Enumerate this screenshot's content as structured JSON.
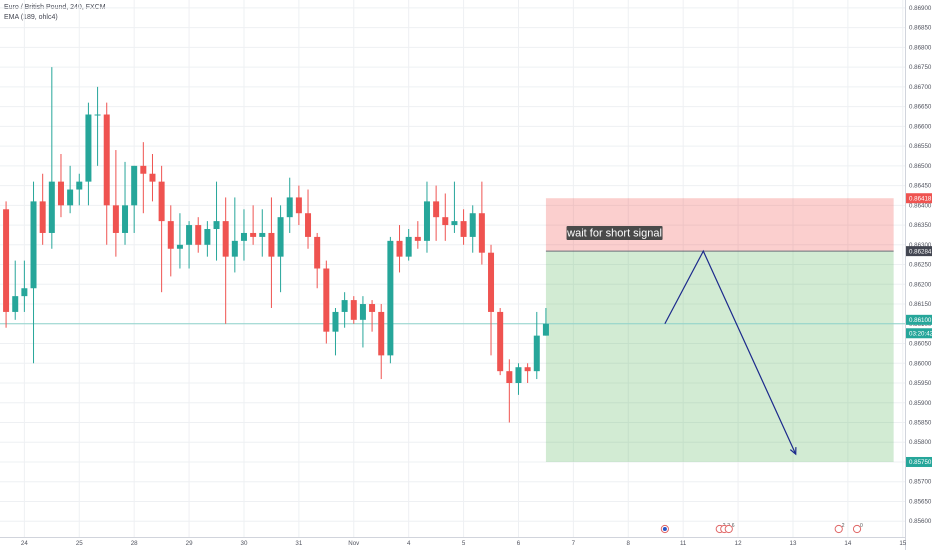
{
  "header": {
    "symbol": "Euro / British Pound, 240, FXCM",
    "indicator": "EMA (189, ohlc4)"
  },
  "chart_data": {
    "type": "candlestick",
    "ylim": [
      0.8556,
      0.8692
    ],
    "y_ticks": [
      0.856,
      0.8565,
      0.857,
      0.8575,
      0.858,
      0.8585,
      0.859,
      0.8595,
      0.86,
      0.8605,
      0.861,
      0.8615,
      0.862,
      0.8625,
      0.863,
      0.8635,
      0.864,
      0.8645,
      0.865,
      0.8655,
      0.866,
      0.8665,
      0.867,
      0.8675,
      0.868,
      0.8685,
      0.869
    ],
    "x_ticks": [
      {
        "label": "24",
        "slot": 2.5
      },
      {
        "label": "25",
        "slot": 8.5
      },
      {
        "label": "28",
        "slot": 14.5
      },
      {
        "label": "29",
        "slot": 20.5
      },
      {
        "label": "30",
        "slot": 26.5
      },
      {
        "label": "31",
        "slot": 32.5
      },
      {
        "label": "Nov",
        "slot": 38.5
      },
      {
        "label": "4",
        "slot": 44.5
      },
      {
        "label": "5",
        "slot": 50.5
      },
      {
        "label": "6",
        "slot": 56.5
      },
      {
        "label": "7",
        "slot": 62.5
      },
      {
        "label": "8",
        "slot": 68.5
      },
      {
        "label": "11",
        "slot": 74.5
      },
      {
        "label": "12",
        "slot": 80.5
      },
      {
        "label": "13",
        "slot": 86.5
      },
      {
        "label": "14",
        "slot": 92.5
      },
      {
        "label": "15",
        "slot": 98.5
      }
    ],
    "colors": {
      "up": "#26a69a",
      "down": "#ef5350",
      "grid": "#eef0f3",
      "ema": "#8fd3cc",
      "arrow": "#1c2a8c"
    },
    "candles": [
      {
        "o": 0.8639,
        "h": 0.8641,
        "l": 0.8609,
        "c": 0.8613
      },
      {
        "o": 0.8613,
        "h": 0.8626,
        "l": 0.8611,
        "c": 0.8617
      },
      {
        "o": 0.8617,
        "h": 0.8626,
        "l": 0.8613,
        "c": 0.8619
      },
      {
        "o": 0.8619,
        "h": 0.8646,
        "l": 0.86,
        "c": 0.8641
      },
      {
        "o": 0.8641,
        "h": 0.8648,
        "l": 0.863,
        "c": 0.8633
      },
      {
        "o": 0.8633,
        "h": 0.8675,
        "l": 0.8629,
        "c": 0.8646
      },
      {
        "o": 0.8646,
        "h": 0.8653,
        "l": 0.8637,
        "c": 0.864
      },
      {
        "o": 0.864,
        "h": 0.865,
        "l": 0.8638,
        "c": 0.8644
      },
      {
        "o": 0.8644,
        "h": 0.8648,
        "l": 0.864,
        "c": 0.8646
      },
      {
        "o": 0.8646,
        "h": 0.8666,
        "l": 0.864,
        "c": 0.8663
      },
      {
        "o": 0.8663,
        "h": 0.867,
        "l": 0.865,
        "c": 0.8663
      },
      {
        "o": 0.8663,
        "h": 0.8666,
        "l": 0.863,
        "c": 0.864
      },
      {
        "o": 0.864,
        "h": 0.8654,
        "l": 0.8627,
        "c": 0.8633
      },
      {
        "o": 0.8633,
        "h": 0.8651,
        "l": 0.863,
        "c": 0.864
      },
      {
        "o": 0.864,
        "h": 0.865,
        "l": 0.8633,
        "c": 0.865
      },
      {
        "o": 0.865,
        "h": 0.8656,
        "l": 0.8638,
        "c": 0.8648
      },
      {
        "o": 0.8648,
        "h": 0.8653,
        "l": 0.8641,
        "c": 0.8646
      },
      {
        "o": 0.8646,
        "h": 0.865,
        "l": 0.8618,
        "c": 0.8636
      },
      {
        "o": 0.8636,
        "h": 0.864,
        "l": 0.8622,
        "c": 0.8629
      },
      {
        "o": 0.8629,
        "h": 0.8638,
        "l": 0.8624,
        "c": 0.863
      },
      {
        "o": 0.863,
        "h": 0.8636,
        "l": 0.8624,
        "c": 0.8635
      },
      {
        "o": 0.8635,
        "h": 0.8637,
        "l": 0.8628,
        "c": 0.863
      },
      {
        "o": 0.863,
        "h": 0.8636,
        "l": 0.8627,
        "c": 0.8634
      },
      {
        "o": 0.8634,
        "h": 0.8646,
        "l": 0.8626,
        "c": 0.8636
      },
      {
        "o": 0.8636,
        "h": 0.8642,
        "l": 0.861,
        "c": 0.8627
      },
      {
        "o": 0.8627,
        "h": 0.8642,
        "l": 0.8623,
        "c": 0.8631
      },
      {
        "o": 0.8631,
        "h": 0.8639,
        "l": 0.8626,
        "c": 0.8633
      },
      {
        "o": 0.8633,
        "h": 0.864,
        "l": 0.863,
        "c": 0.8632
      },
      {
        "o": 0.8632,
        "h": 0.8639,
        "l": 0.8627,
        "c": 0.8633
      },
      {
        "o": 0.8633,
        "h": 0.8642,
        "l": 0.8614,
        "c": 0.8627
      },
      {
        "o": 0.8627,
        "h": 0.864,
        "l": 0.8618,
        "c": 0.8637
      },
      {
        "o": 0.8637,
        "h": 0.8647,
        "l": 0.8633,
        "c": 0.8642
      },
      {
        "o": 0.8642,
        "h": 0.8645,
        "l": 0.8635,
        "c": 0.8638
      },
      {
        "o": 0.8638,
        "h": 0.8644,
        "l": 0.8629,
        "c": 0.8632
      },
      {
        "o": 0.8632,
        "h": 0.8633,
        "l": 0.8619,
        "c": 0.8624
      },
      {
        "o": 0.8624,
        "h": 0.8626,
        "l": 0.8605,
        "c": 0.8608
      },
      {
        "o": 0.8608,
        "h": 0.8614,
        "l": 0.8602,
        "c": 0.8613
      },
      {
        "o": 0.8613,
        "h": 0.8618,
        "l": 0.8609,
        "c": 0.8616
      },
      {
        "o": 0.8616,
        "h": 0.8617,
        "l": 0.861,
        "c": 0.8611
      },
      {
        "o": 0.8611,
        "h": 0.8617,
        "l": 0.8604,
        "c": 0.8615
      },
      {
        "o": 0.8615,
        "h": 0.8616,
        "l": 0.8608,
        "c": 0.8613
      },
      {
        "o": 0.8613,
        "h": 0.8615,
        "l": 0.8596,
        "c": 0.8602
      },
      {
        "o": 0.8602,
        "h": 0.8632,
        "l": 0.86,
        "c": 0.8631
      },
      {
        "o": 0.8631,
        "h": 0.8635,
        "l": 0.8623,
        "c": 0.8627
      },
      {
        "o": 0.8627,
        "h": 0.8634,
        "l": 0.8626,
        "c": 0.8632
      },
      {
        "o": 0.8632,
        "h": 0.8636,
        "l": 0.8629,
        "c": 0.8631
      },
      {
        "o": 0.8631,
        "h": 0.8646,
        "l": 0.8628,
        "c": 0.8641
      },
      {
        "o": 0.8641,
        "h": 0.8645,
        "l": 0.8631,
        "c": 0.8637
      },
      {
        "o": 0.8637,
        "h": 0.8643,
        "l": 0.8631,
        "c": 0.8635
      },
      {
        "o": 0.8635,
        "h": 0.8646,
        "l": 0.8633,
        "c": 0.8636
      },
      {
        "o": 0.8636,
        "h": 0.8639,
        "l": 0.863,
        "c": 0.8632
      },
      {
        "o": 0.8632,
        "h": 0.864,
        "l": 0.8628,
        "c": 0.8638
      },
      {
        "o": 0.8638,
        "h": 0.8646,
        "l": 0.8625,
        "c": 0.8628
      },
      {
        "o": 0.8628,
        "h": 0.863,
        "l": 0.8602,
        "c": 0.8613
      },
      {
        "o": 0.8613,
        "h": 0.8614,
        "l": 0.8597,
        "c": 0.8598
      },
      {
        "o": 0.8598,
        "h": 0.8601,
        "l": 0.8585,
        "c": 0.8595
      },
      {
        "o": 0.8595,
        "h": 0.86,
        "l": 0.8592,
        "c": 0.8599
      },
      {
        "o": 0.8599,
        "h": 0.86,
        "l": 0.8595,
        "c": 0.8598
      },
      {
        "o": 0.8598,
        "h": 0.8613,
        "l": 0.8596,
        "c": 0.8607
      },
      {
        "o": 0.8607,
        "h": 0.8614,
        "l": 0.8607,
        "c": 0.861
      }
    ],
    "ema_value": 0.861,
    "position": {
      "type": "short",
      "entry": 0.86284,
      "stop": 0.86418,
      "target": 0.8575,
      "start_slot": 59.5,
      "end_slot": 97.5
    },
    "projection": [
      {
        "slot": 72.5,
        "price": 0.861
      },
      {
        "slot": 76.7,
        "price": 0.86284
      },
      {
        "slot": 86.8,
        "price": 0.8577
      }
    ],
    "price_tags": [
      {
        "value": "0.86418",
        "price": 0.86418,
        "color": "#ef5350"
      },
      {
        "value": "0.86284",
        "price": 0.86284,
        "color": "#434651"
      },
      {
        "value": "0.86100",
        "price": 0.8611,
        "color": "#26a69a"
      },
      {
        "value": "03:20:42",
        "price": 0.86076,
        "color": "#26a69a"
      },
      {
        "value": "0.85750",
        "price": 0.8575,
        "color": "#26a69a"
      }
    ],
    "annotation": {
      "text": "wait for short signal",
      "slot": 67.0,
      "price": 0.8633
    },
    "events": [
      {
        "slot": 72.5,
        "labels": [
          ""
        ]
      },
      {
        "slot": 78.5,
        "labels": [
          "2",
          "2",
          "6"
        ]
      },
      {
        "slot": 91.5,
        "labels": [
          "2"
        ]
      },
      {
        "slot": 93.5,
        "labels": [
          "0"
        ]
      },
      {
        "slot": 101.5,
        "labels": [
          "5",
          ""
        ]
      }
    ]
  }
}
